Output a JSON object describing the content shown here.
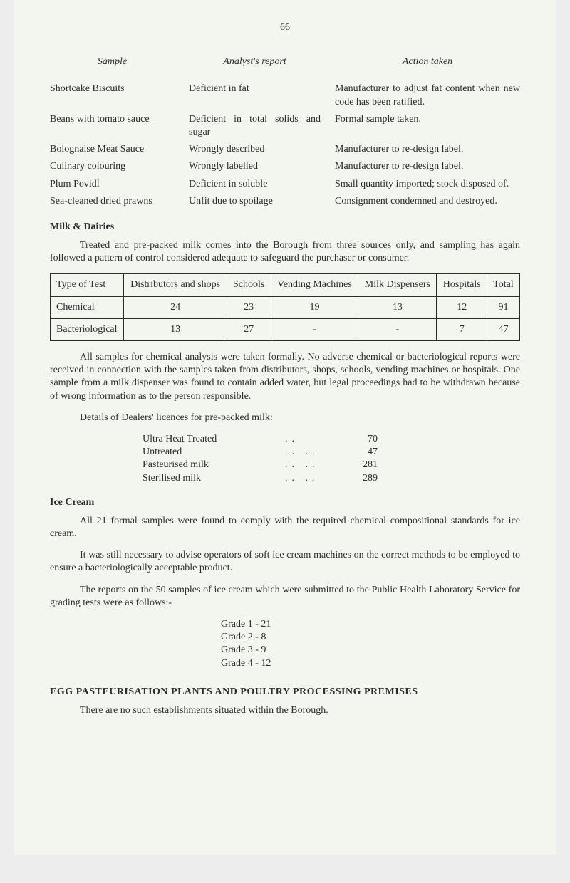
{
  "page_number": "66",
  "top_table": {
    "headers": {
      "sample": "Sample",
      "analyst": "Analyst's report",
      "action": "Action taken"
    },
    "rows": [
      {
        "sample": "Shortcake Biscuits",
        "analyst": "Deficient in fat",
        "action": "Manufacturer to adjust fat content when new code has been ratified."
      },
      {
        "sample": "Beans with tomato sauce",
        "analyst": "Deficient in total solids and sugar",
        "action": "Formal sample taken."
      },
      {
        "sample": "Bolognaise Meat Sauce",
        "analyst": "Wrongly described",
        "action": "Manufacturer to re-design label."
      },
      {
        "sample": "Culinary colouring",
        "analyst": "Wrongly labelled",
        "action": "Manufacturer to re-design label."
      },
      {
        "sample": "Plum Povidl",
        "analyst": "Deficient in soluble",
        "action": "Small quantity imported; stock disposed of."
      },
      {
        "sample": "Sea-cleaned dried prawns",
        "analyst": "Unfit due to spoil­age",
        "action": "Consignment condemned and destroyed."
      }
    ]
  },
  "milk_heading": "Milk & Dairies",
  "milk_para": "Treated and pre-packed milk comes into the Borough from three sources only, and sampling has again followed a pattern of control considered adequate to safe­guard the purchaser or consumer.",
  "test_table": {
    "headers": [
      "Type of Test",
      "Distributors and shops",
      "Schools",
      "Vending Machines",
      "Milk Dispensers",
      "Hospitals",
      "Total"
    ],
    "rows": [
      [
        "Chemical",
        "24",
        "23",
        "19",
        "13",
        "12",
        "91"
      ],
      [
        "Bacteriologi­cal",
        "13",
        "27",
        "-",
        "-",
        "7",
        "47"
      ]
    ]
  },
  "analysis_para": "All samples for chemical analysis were taken formally. No adverse chemical or bacteriological reports were received in connection with the samples taken from distributors, shops, schools, vending machines or hospitals. One sample from a milk dispenser was found to contain added water, but legal proceedings had to be withdrawn because of wrong information as to the person responsible.",
  "licence_intro": "Details of Dealers' licences for pre-packed milk:",
  "licences": [
    {
      "label": "Ultra Heat Treated",
      "value": "70"
    },
    {
      "label": "Untreated",
      "value": "47"
    },
    {
      "label": "Pasteurised milk",
      "value": "281"
    },
    {
      "label": "Sterilised milk",
      "value": "289"
    }
  ],
  "ice_cream_heading": "Ice Cream",
  "ice_para1": "All 21 formal samples were found to comply with the required chemical compositional standards for ice cream.",
  "ice_para2": "It was still necessary to advise operators of soft ice cream machines on the correct methods to be employed to ensure a bacteriologically acceptable product.",
  "ice_para3": "The reports on the 50 samples of ice cream which were submitted to the Public Health Laboratory Service for grading tests were as follows:-",
  "grades": [
    "Grade 1 - 21",
    "Grade 2 -  8",
    "Grade 3 -  9",
    "Grade 4 - 12"
  ],
  "egg_heading": "EGG PASTEURISATION PLANTS AND POULTRY PROCESSING PREMISES",
  "egg_para": "There are no such establishments situated within the Borough."
}
